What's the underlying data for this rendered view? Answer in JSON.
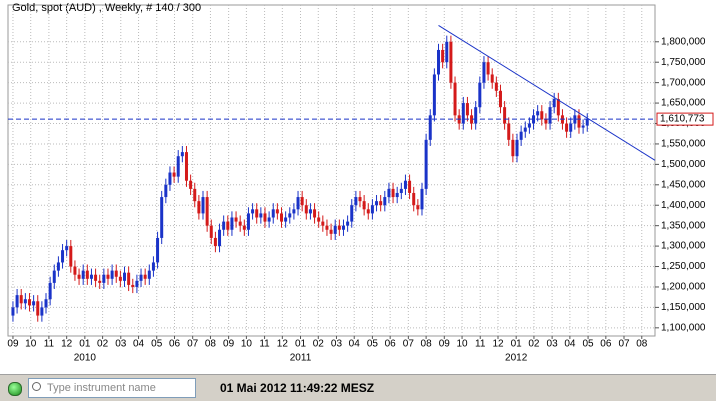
{
  "chart_data": {
    "type": "candlestick",
    "title": "Gold, spot (AUD) , Weekly, # 140 / 300",
    "up_color": "#1a33c8",
    "down_color": "#d41a1a",
    "ylim": [
      1080000,
      1890000
    ],
    "yticks": [
      {
        "value": 1100000,
        "label": "1,100,000"
      },
      {
        "value": 1150000,
        "label": "1,150,000"
      },
      {
        "value": 1200000,
        "label": "1,200,000"
      },
      {
        "value": 1250000,
        "label": "1,250,000"
      },
      {
        "value": 1300000,
        "label": "1,300,000"
      },
      {
        "value": 1350000,
        "label": "1,350,000"
      },
      {
        "value": 1400000,
        "label": "1,400,000"
      },
      {
        "value": 1450000,
        "label": "1,450,000"
      },
      {
        "value": 1500000,
        "label": "1,500,000"
      },
      {
        "value": 1550000,
        "label": "1,550,000"
      },
      {
        "value": 1600000,
        "label": "1,600,000"
      },
      {
        "value": 1650000,
        "label": "1,650,000"
      },
      {
        "value": 1700000,
        "label": "1,700,000"
      },
      {
        "value": 1750000,
        "label": "1,750,000"
      },
      {
        "value": 1800000,
        "label": "1,800,000"
      }
    ],
    "xlim": [
      -1.2,
      155.4
    ],
    "xticks": [
      {
        "value": 0,
        "label": "09"
      },
      {
        "value": 4.3,
        "label": "10"
      },
      {
        "value": 8.7,
        "label": "11"
      },
      {
        "value": 13,
        "label": "12"
      },
      {
        "value": 17.4,
        "label": "01"
      },
      {
        "value": 21.7,
        "label": "02"
      },
      {
        "value": 26.1,
        "label": "03"
      },
      {
        "value": 30.4,
        "label": "04"
      },
      {
        "value": 34.8,
        "label": "05"
      },
      {
        "value": 39.1,
        "label": "06"
      },
      {
        "value": 43.5,
        "label": "07"
      },
      {
        "value": 47.8,
        "label": "08"
      },
      {
        "value": 52.2,
        "label": "09"
      },
      {
        "value": 56.5,
        "label": "10"
      },
      {
        "value": 60.9,
        "label": "11"
      },
      {
        "value": 65.2,
        "label": "12"
      },
      {
        "value": 69.6,
        "label": "01"
      },
      {
        "value": 73.9,
        "label": "02"
      },
      {
        "value": 78.3,
        "label": "03"
      },
      {
        "value": 82.6,
        "label": "04"
      },
      {
        "value": 87,
        "label": "05"
      },
      {
        "value": 91.3,
        "label": "06"
      },
      {
        "value": 95.7,
        "label": "07"
      },
      {
        "value": 100,
        "label": "08"
      },
      {
        "value": 104.4,
        "label": "09"
      },
      {
        "value": 108.7,
        "label": "10"
      },
      {
        "value": 113.1,
        "label": "11"
      },
      {
        "value": 117.4,
        "label": "12"
      },
      {
        "value": 121.8,
        "label": "01"
      },
      {
        "value": 126.1,
        "label": "02"
      },
      {
        "value": 130.5,
        "label": "03"
      },
      {
        "value": 134.8,
        "label": "04"
      },
      {
        "value": 139.2,
        "label": "05"
      },
      {
        "value": 143.5,
        "label": "06"
      },
      {
        "value": 147.9,
        "label": "07"
      },
      {
        "value": 152.2,
        "label": "08"
      }
    ],
    "year_labels": [
      {
        "value": 17.4,
        "label": "2010"
      },
      {
        "value": 69.6,
        "label": "2011"
      },
      {
        "value": 121.8,
        "label": "2012"
      }
    ],
    "grid": true,
    "open": [
      1130000,
      1150000,
      1180000,
      1160000,
      1170000,
      1155000,
      1165000,
      1130000,
      1150000,
      1170000,
      1210000,
      1240000,
      1260000,
      1290000,
      1300000,
      1250000,
      1230000,
      1220000,
      1240000,
      1220000,
      1230000,
      1215000,
      1210000,
      1230000,
      1220000,
      1240000,
      1225000,
      1215000,
      1235000,
      1205000,
      1200000,
      1215000,
      1230000,
      1220000,
      1240000,
      1260000,
      1320000,
      1420000,
      1450000,
      1480000,
      1470000,
      1520000,
      1530000,
      1460000,
      1440000,
      1410000,
      1380000,
      1420000,
      1350000,
      1320000,
      1300000,
      1340000,
      1360000,
      1340000,
      1370000,
      1360000,
      1350000,
      1340000,
      1380000,
      1390000,
      1370000,
      1380000,
      1360000,
      1370000,
      1390000,
      1380000,
      1360000,
      1370000,
      1380000,
      1390000,
      1420000,
      1400000,
      1380000,
      1390000,
      1370000,
      1360000,
      1350000,
      1340000,
      1330000,
      1350000,
      1340000,
      1350000,
      1360000,
      1400000,
      1420000,
      1410000,
      1390000,
      1380000,
      1400000,
      1410000,
      1400000,
      1420000,
      1440000,
      1420000,
      1430000,
      1440000,
      1460000,
      1430000,
      1400000,
      1390000,
      1440000,
      1560000,
      1620000,
      1720000,
      1780000,
      1750000,
      1800000,
      1700000,
      1620000,
      1600000,
      1650000,
      1620000,
      1600000,
      1640000,
      1700000,
      1750000,
      1720000,
      1700000,
      1680000,
      1640000,
      1600000,
      1560000,
      1520000,
      1560000,
      1580000,
      1590000,
      1600000,
      1620000,
      1630000,
      1610000,
      1600000,
      1640000,
      1660000,
      1620000,
      1600000,
      1580000,
      1600000,
      1620000,
      1590000,
      1595000
    ],
    "high": [
      1165000,
      1195000,
      1195000,
      1185000,
      1185000,
      1180000,
      1180000,
      1165000,
      1185000,
      1225000,
      1255000,
      1275000,
      1305000,
      1315000,
      1315000,
      1265000,
      1245000,
      1255000,
      1255000,
      1245000,
      1245000,
      1230000,
      1245000,
      1245000,
      1255000,
      1255000,
      1240000,
      1250000,
      1250000,
      1220000,
      1230000,
      1245000,
      1245000,
      1255000,
      1275000,
      1335000,
      1435000,
      1465000,
      1495000,
      1495000,
      1535000,
      1545000,
      1545000,
      1475000,
      1455000,
      1425000,
      1435000,
      1435000,
      1365000,
      1335000,
      1355000,
      1375000,
      1375000,
      1385000,
      1385000,
      1375000,
      1365000,
      1395000,
      1405000,
      1405000,
      1395000,
      1395000,
      1385000,
      1405000,
      1405000,
      1395000,
      1385000,
      1395000,
      1405000,
      1435000,
      1435000,
      1415000,
      1405000,
      1405000,
      1385000,
      1375000,
      1365000,
      1355000,
      1365000,
      1365000,
      1365000,
      1375000,
      1415000,
      1435000,
      1435000,
      1425000,
      1405000,
      1415000,
      1425000,
      1425000,
      1435000,
      1455000,
      1455000,
      1445000,
      1455000,
      1475000,
      1475000,
      1445000,
      1415000,
      1455000,
      1575000,
      1635000,
      1735000,
      1795000,
      1795000,
      1815000,
      1815000,
      1715000,
      1635000,
      1665000,
      1665000,
      1635000,
      1655000,
      1715000,
      1765000,
      1765000,
      1735000,
      1715000,
      1695000,
      1655000,
      1615000,
      1575000,
      1575000,
      1595000,
      1605000,
      1615000,
      1635000,
      1645000,
      1645000,
      1625000,
      1655000,
      1675000,
      1675000,
      1635000,
      1615000,
      1615000,
      1635000,
      1635000,
      1610000,
      1625000
    ],
    "low": [
      1115000,
      1135000,
      1145000,
      1145000,
      1140000,
      1140000,
      1115000,
      1115000,
      1135000,
      1155000,
      1195000,
      1225000,
      1245000,
      1275000,
      1235000,
      1215000,
      1205000,
      1205000,
      1205000,
      1205000,
      1200000,
      1195000,
      1195000,
      1205000,
      1205000,
      1210000,
      1200000,
      1200000,
      1190000,
      1185000,
      1185000,
      1200000,
      1205000,
      1205000,
      1225000,
      1245000,
      1305000,
      1405000,
      1435000,
      1455000,
      1455000,
      1505000,
      1445000,
      1425000,
      1395000,
      1365000,
      1365000,
      1335000,
      1305000,
      1285000,
      1285000,
      1325000,
      1325000,
      1325000,
      1345000,
      1335000,
      1325000,
      1325000,
      1365000,
      1355000,
      1355000,
      1345000,
      1345000,
      1355000,
      1365000,
      1345000,
      1345000,
      1355000,
      1365000,
      1375000,
      1385000,
      1365000,
      1365000,
      1355000,
      1345000,
      1335000,
      1325000,
      1315000,
      1315000,
      1325000,
      1325000,
      1335000,
      1345000,
      1385000,
      1395000,
      1375000,
      1365000,
      1365000,
      1385000,
      1385000,
      1385000,
      1405000,
      1405000,
      1405000,
      1415000,
      1425000,
      1415000,
      1385000,
      1375000,
      1375000,
      1425000,
      1545000,
      1605000,
      1705000,
      1735000,
      1735000,
      1685000,
      1605000,
      1585000,
      1585000,
      1605000,
      1585000,
      1585000,
      1625000,
      1685000,
      1705000,
      1685000,
      1665000,
      1625000,
      1585000,
      1545000,
      1505000,
      1505000,
      1545000,
      1565000,
      1575000,
      1585000,
      1605000,
      1595000,
      1585000,
      1585000,
      1625000,
      1605000,
      1585000,
      1565000,
      1565000,
      1585000,
      1575000,
      1575000,
      1580000
    ],
    "close": [
      1150000,
      1180000,
      1160000,
      1170000,
      1155000,
      1165000,
      1130000,
      1150000,
      1170000,
      1210000,
      1240000,
      1260000,
      1290000,
      1300000,
      1250000,
      1230000,
      1220000,
      1240000,
      1220000,
      1230000,
      1215000,
      1210000,
      1230000,
      1220000,
      1240000,
      1225000,
      1215000,
      1235000,
      1205000,
      1200000,
      1215000,
      1230000,
      1220000,
      1240000,
      1260000,
      1320000,
      1420000,
      1450000,
      1480000,
      1470000,
      1520000,
      1530000,
      1460000,
      1440000,
      1410000,
      1380000,
      1420000,
      1350000,
      1320000,
      1300000,
      1340000,
      1360000,
      1340000,
      1370000,
      1360000,
      1350000,
      1340000,
      1380000,
      1390000,
      1370000,
      1380000,
      1360000,
      1370000,
      1390000,
      1380000,
      1360000,
      1370000,
      1380000,
      1390000,
      1420000,
      1400000,
      1380000,
      1390000,
      1370000,
      1360000,
      1350000,
      1340000,
      1330000,
      1350000,
      1340000,
      1350000,
      1360000,
      1400000,
      1420000,
      1410000,
      1390000,
      1380000,
      1400000,
      1410000,
      1400000,
      1420000,
      1440000,
      1420000,
      1430000,
      1440000,
      1460000,
      1430000,
      1400000,
      1390000,
      1440000,
      1560000,
      1620000,
      1720000,
      1780000,
      1750000,
      1800000,
      1700000,
      1620000,
      1600000,
      1650000,
      1620000,
      1600000,
      1640000,
      1700000,
      1750000,
      1720000,
      1700000,
      1680000,
      1640000,
      1600000,
      1560000,
      1520000,
      1560000,
      1580000,
      1590000,
      1600000,
      1620000,
      1630000,
      1610000,
      1600000,
      1640000,
      1660000,
      1620000,
      1600000,
      1580000,
      1600000,
      1620000,
      1590000,
      1595000,
      1610773
    ],
    "current_price": {
      "value": 1610773,
      "label": "1,610,773",
      "color": "#1a33c8"
    },
    "trendline": {
      "x": [
        103,
        155.4
      ],
      "y": [
        1840000,
        1510000
      ],
      "color": "#1a33c8"
    }
  },
  "status_bar": {
    "search_placeholder": "Type instrument name",
    "datetime": "01 Mai 2012 11:49:22 MESZ"
  }
}
